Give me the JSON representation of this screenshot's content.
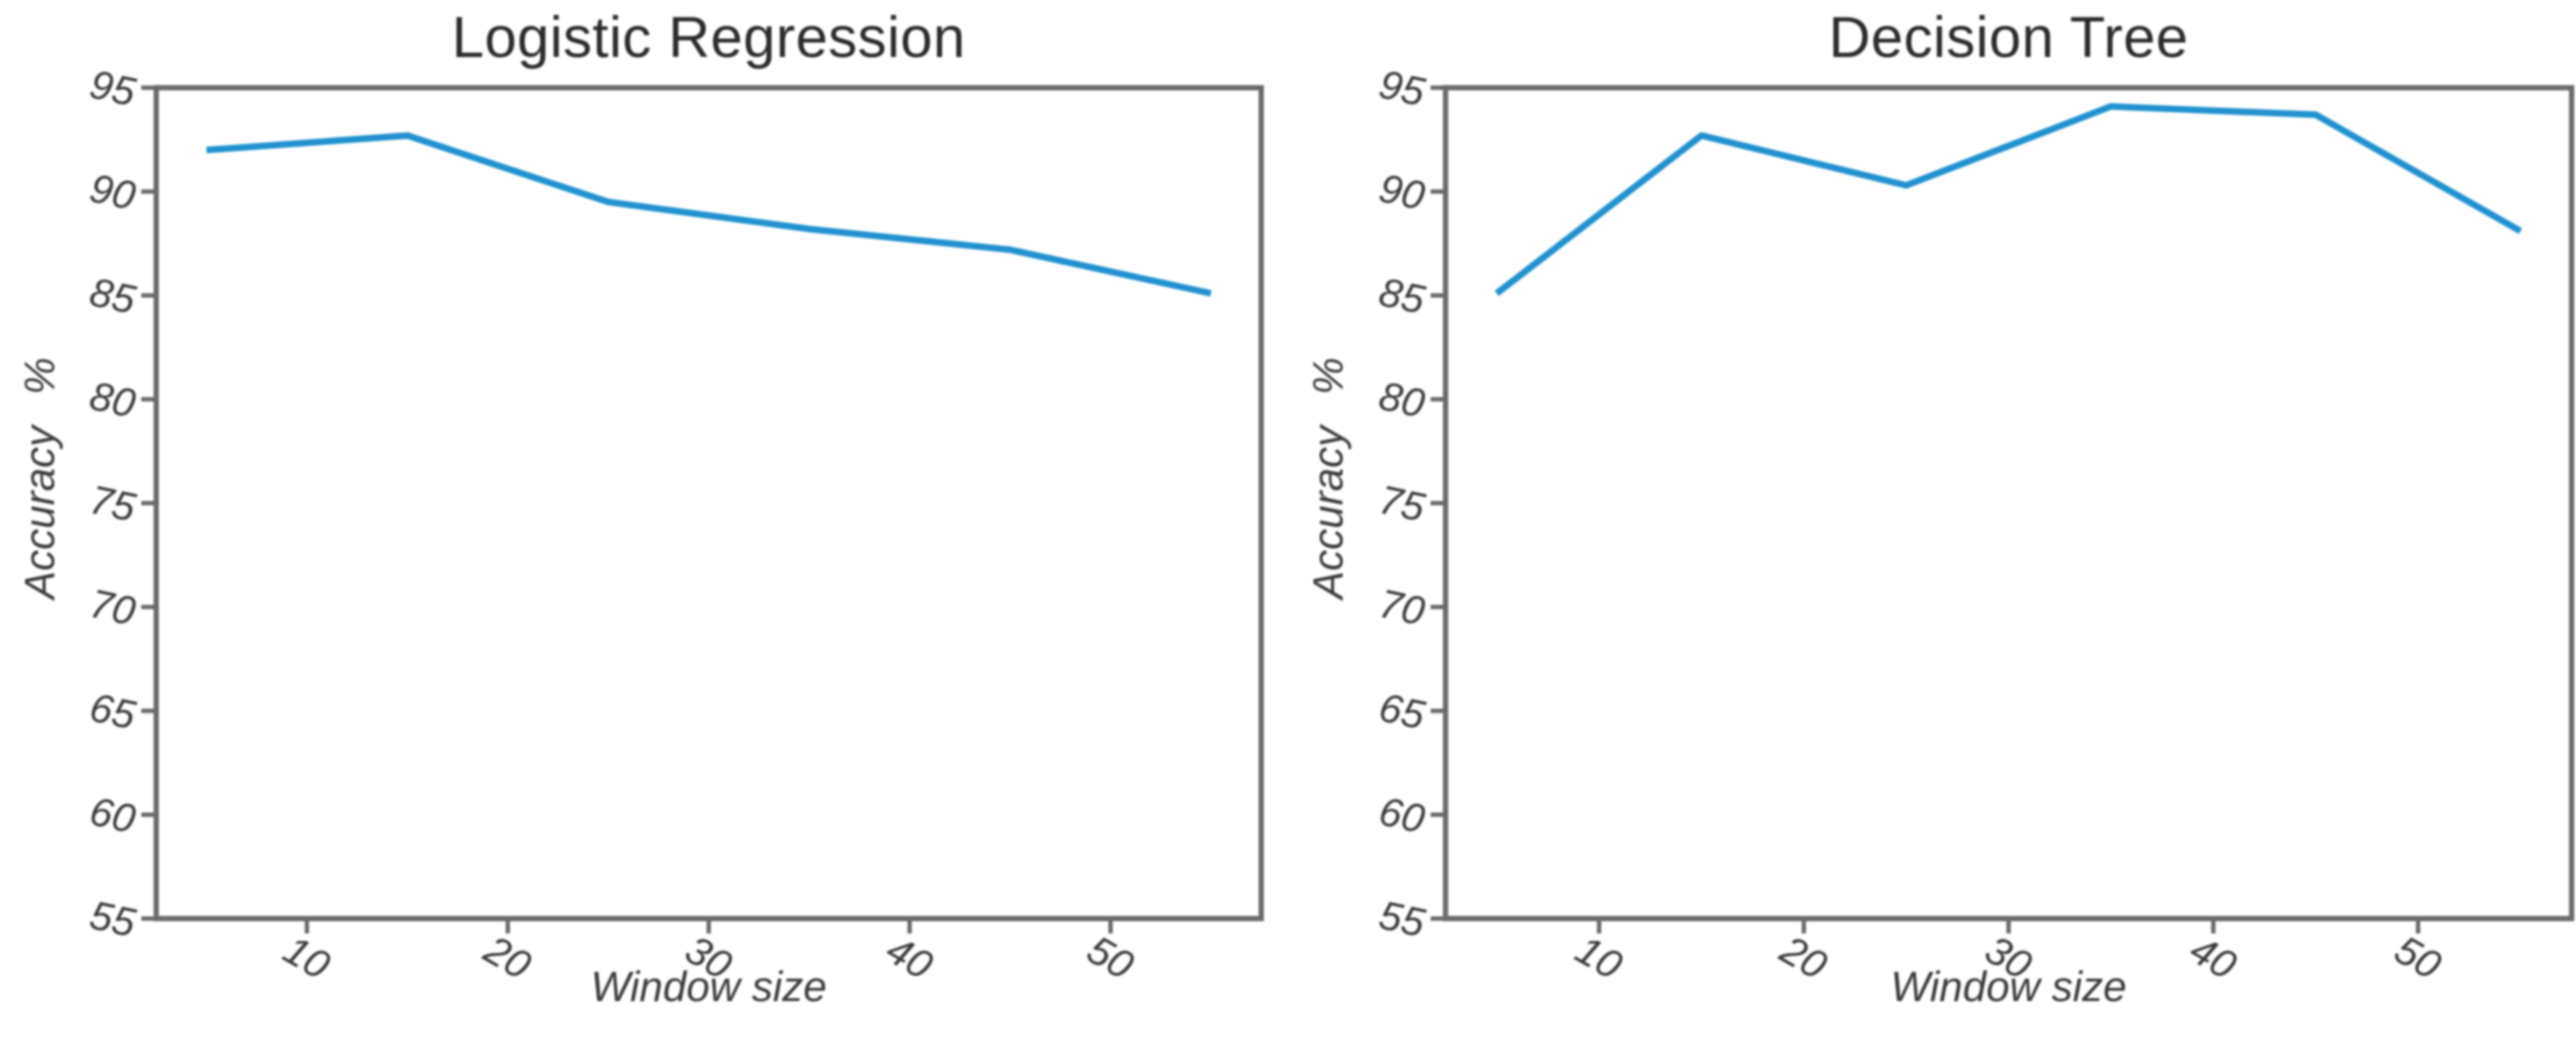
{
  "colors": {
    "background": "#ffffff",
    "axis": "#6a6a6a",
    "tick_text": "#3a3a3a",
    "title_text": "#2b2b2b",
    "line_blue": "#2191cf"
  },
  "chart_data": [
    {
      "type": "line",
      "title": "Logistic Regression",
      "xlabel": "Window size",
      "ylabel": "Accuracy %",
      "x": [
        5,
        15,
        25,
        35,
        45,
        55
      ],
      "values": [
        92.0,
        92.7,
        89.5,
        88.2,
        87.2,
        85.1
      ],
      "x_ticks": [
        10,
        20,
        30,
        40,
        50
      ],
      "y_ticks": [
        95,
        90,
        85,
        80,
        75,
        70,
        65,
        60,
        55
      ],
      "xlim": [
        2.5,
        57.5
      ],
      "ylim": [
        55,
        95
      ],
      "grid": false,
      "legend": "none",
      "line_color": "#2191cf"
    },
    {
      "type": "line",
      "title": "Decision Tree",
      "xlabel": "Window size",
      "ylabel": "Accuracy %",
      "x": [
        5,
        15,
        25,
        35,
        45,
        55
      ],
      "values": [
        85.1,
        92.7,
        90.3,
        94.1,
        93.7,
        88.1
      ],
      "x_ticks": [
        10,
        20,
        30,
        40,
        50
      ],
      "y_ticks": [
        95,
        90,
        85,
        80,
        75,
        70,
        65,
        60,
        55
      ],
      "xlim": [
        2.5,
        57.5
      ],
      "ylim": [
        55,
        95
      ],
      "grid": false,
      "legend": "none",
      "line_color": "#2191cf"
    }
  ]
}
